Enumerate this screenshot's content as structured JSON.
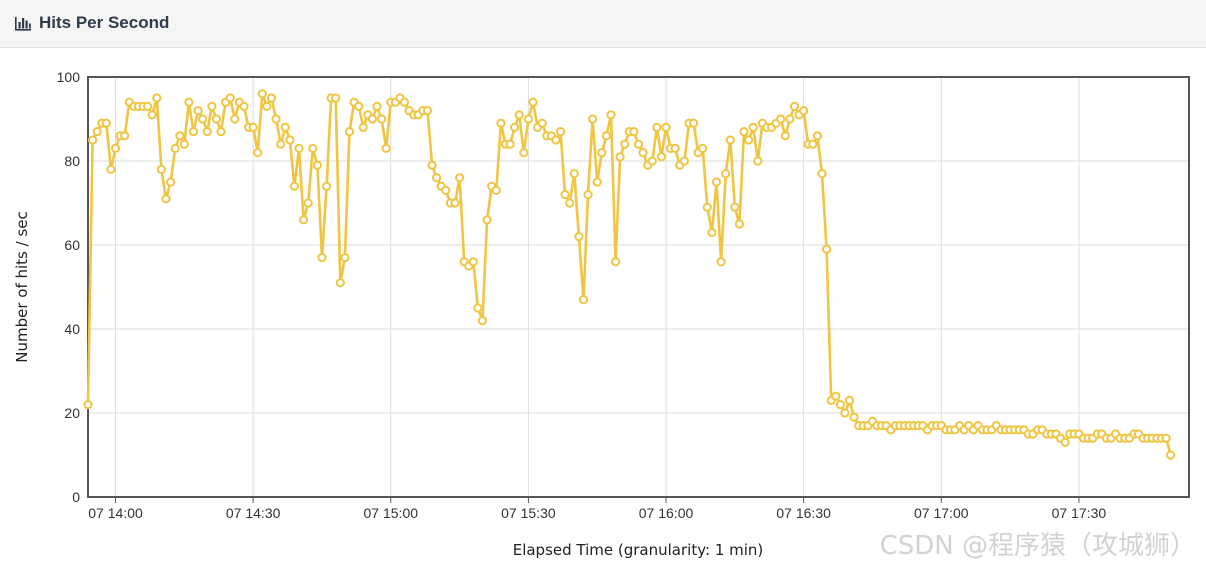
{
  "panel": {
    "title": "Hits Per Second",
    "icon": "bar-chart-icon"
  },
  "watermark": "CSDN @程序猿（攻城狮）",
  "chart_data": {
    "type": "line",
    "title": "Hits Per Second",
    "xlabel": "Elapsed Time (granularity: 1 min)",
    "ylabel": "Number of hits / sec",
    "xlim": [
      "13:52",
      "17:52"
    ],
    "ylim": [
      0,
      100
    ],
    "yticks": [
      0,
      20,
      40,
      60,
      80,
      100
    ],
    "xticks": [
      "13:58",
      "14:28",
      "14:58",
      "15:28",
      "15:58",
      "16:28",
      "16:58",
      "17:28"
    ],
    "xtick_labels": [
      "07 14:00",
      "07 14:30",
      "07 15:00",
      "07 15:30",
      "07 16:00",
      "07 16:30",
      "07 17:00",
      "07 17:30"
    ],
    "grid": true,
    "series": [
      {
        "name": "",
        "color": "#f0c543",
        "x_start": "13:52",
        "x_step_min": 1,
        "values": [
          22,
          85,
          87,
          89,
          89,
          78,
          83,
          86,
          86,
          94,
          93,
          93,
          93,
          93,
          91,
          95,
          78,
          71,
          75,
          83,
          86,
          84,
          94,
          87,
          92,
          90,
          87,
          93,
          90,
          87,
          94,
          95,
          90,
          94,
          93,
          88,
          88,
          82,
          96,
          93,
          95,
          90,
          84,
          88,
          85,
          74,
          83,
          66,
          70,
          83,
          79,
          57,
          74,
          95,
          95,
          51,
          57,
          87,
          94,
          93,
          88,
          91,
          90,
          93,
          90,
          83,
          94,
          94,
          95,
          94,
          92,
          91,
          91,
          92,
          92,
          79,
          76,
          74,
          73,
          70,
          70,
          76,
          56,
          55,
          56,
          45,
          42,
          66,
          74,
          73,
          89,
          84,
          84,
          88,
          91,
          82,
          90,
          94,
          88,
          89,
          86,
          86,
          85,
          87,
          72,
          70,
          77,
          62,
          47,
          72,
          90,
          75,
          82,
          86,
          91,
          56,
          81,
          84,
          87,
          87,
          84,
          82,
          79,
          80,
          88,
          81,
          88,
          83,
          83,
          79,
          80,
          89,
          89,
          82,
          83,
          69,
          63,
          75,
          56,
          77,
          85,
          69,
          65,
          87,
          85,
          88,
          80,
          89,
          88,
          88,
          89,
          90,
          86,
          90,
          93,
          91,
          92,
          84,
          84,
          86,
          77,
          59,
          23,
          24,
          22,
          20,
          23,
          19,
          17,
          17,
          17,
          18,
          17,
          17,
          17,
          16,
          17,
          17,
          17,
          17,
          17,
          17,
          17,
          16,
          17,
          17,
          17,
          16,
          16,
          16,
          17,
          16,
          17,
          16,
          17,
          16,
          16,
          16,
          17,
          16,
          16,
          16,
          16,
          16,
          16,
          15,
          15,
          16,
          16,
          15,
          15,
          15,
          14,
          13,
          15,
          15,
          15,
          14,
          14,
          14,
          15,
          15,
          14,
          14,
          15,
          14,
          14,
          14,
          15,
          15,
          14,
          14,
          14,
          14,
          14,
          14,
          10
        ]
      }
    ]
  }
}
